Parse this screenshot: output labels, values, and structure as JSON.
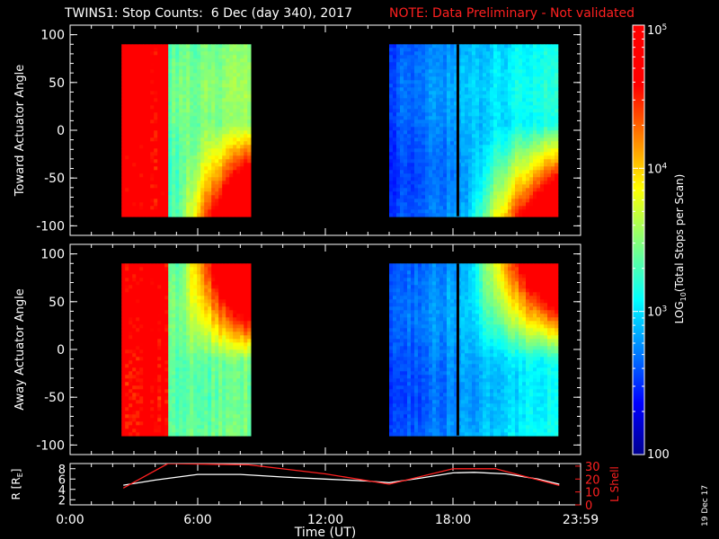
{
  "title": {
    "main": "TWINS1: Stop Counts:  6 Dec (day 340), 2017",
    "note": "NOTE: Data Preliminary - Not validated"
  },
  "date_stamp": "19 Dec 17",
  "colors": {
    "background": "#000000",
    "axes": "#ffffff",
    "note": "#ff2020",
    "r_line": "#ffffff",
    "lshell_line": "#ff2020"
  },
  "chart_data": [
    {
      "type": "heatmap",
      "ylabel": "Toward Actuator Angle",
      "ylim": [
        -110,
        110
      ],
      "yticks": [
        -100,
        -50,
        0,
        50,
        100
      ],
      "xlim_hours": [
        0,
        24
      ],
      "data_y_range": [
        -90,
        90
      ],
      "colorscale": "log10 rainbow",
      "scans": [
        {
          "start": "02:25",
          "end": "08:25",
          "near_start": "saturated high, roughly 1e5",
          "late": "roughly 1e3-1e4",
          "high_corner": "low angles near end, up to 1e5"
        },
        {
          "start": "15:00",
          "end": "22:55",
          "gap": "18:10",
          "low": "roughly 2e2-1e3",
          "high_corner": "low angles near end, up to 1e5"
        }
      ]
    },
    {
      "type": "heatmap",
      "ylabel": "Away Actuator Angle",
      "ylim": [
        -110,
        110
      ],
      "yticks": [
        -100,
        -50,
        0,
        50,
        100
      ],
      "xlim_hours": [
        0,
        24
      ],
      "data_y_range": [
        -90,
        90
      ],
      "colorscale": "log10 rainbow",
      "scans": [
        {
          "start": "02:25",
          "end": "08:25",
          "near_start": "saturated high, roughly 1e5",
          "late": "roughly 1e3-1e4",
          "high_corner": "high angles near end, up to 1e5"
        },
        {
          "start": "15:00",
          "end": "22:55",
          "gap": "18:10",
          "low": "roughly 2e2-1e3",
          "high_corner": "high angles near end, up to 1e5"
        }
      ]
    },
    {
      "type": "line",
      "xlabel": "Time (UT)",
      "xticks": [
        "0:00",
        "6:00",
        "12:00",
        "18:00",
        "23:59"
      ],
      "xlim_hours": [
        0,
        24
      ],
      "ylabel_left": "R [R",
      "ylabel_left_sub": "E",
      "ylabel_left_close": "]",
      "ylim_left": [
        1,
        9
      ],
      "yticks_left": [
        2,
        4,
        6,
        8
      ],
      "ylabel_right": "L Shell",
      "ylim_right": [
        0,
        32
      ],
      "yticks_right": [
        0,
        10,
        20,
        30
      ],
      "series": [
        {
          "name": "R",
          "axis": "left",
          "x": [
            2.5,
            4,
            6,
            8,
            10,
            12,
            14,
            15,
            16.5,
            18,
            19,
            20.5,
            22,
            23
          ],
          "y": [
            4.8,
            5.8,
            6.9,
            6.9,
            6.4,
            6.0,
            5.6,
            5.3,
            6.2,
            7.2,
            7.3,
            7.0,
            6.0,
            5.0
          ]
        },
        {
          "name": "L Shell",
          "axis": "right",
          "x": [
            2.5,
            4.6,
            8.4,
            12,
            15,
            18,
            20,
            23
          ],
          "y": [
            13,
            32,
            31,
            24,
            16,
            28,
            28,
            15
          ]
        }
      ]
    }
  ],
  "colorbar": {
    "label_log": "LOG",
    "label_base": "10",
    "label_rest": "(Total Stops per Scan)",
    "ticks": [
      {
        "v": 100,
        "base": "100",
        "exp": ""
      },
      {
        "v": 1000,
        "base": "10",
        "exp": "3"
      },
      {
        "v": 10000,
        "base": "10",
        "exp": "4"
      },
      {
        "v": 100000,
        "base": "10",
        "exp": "5"
      }
    ],
    "range": [
      100,
      100000
    ]
  }
}
